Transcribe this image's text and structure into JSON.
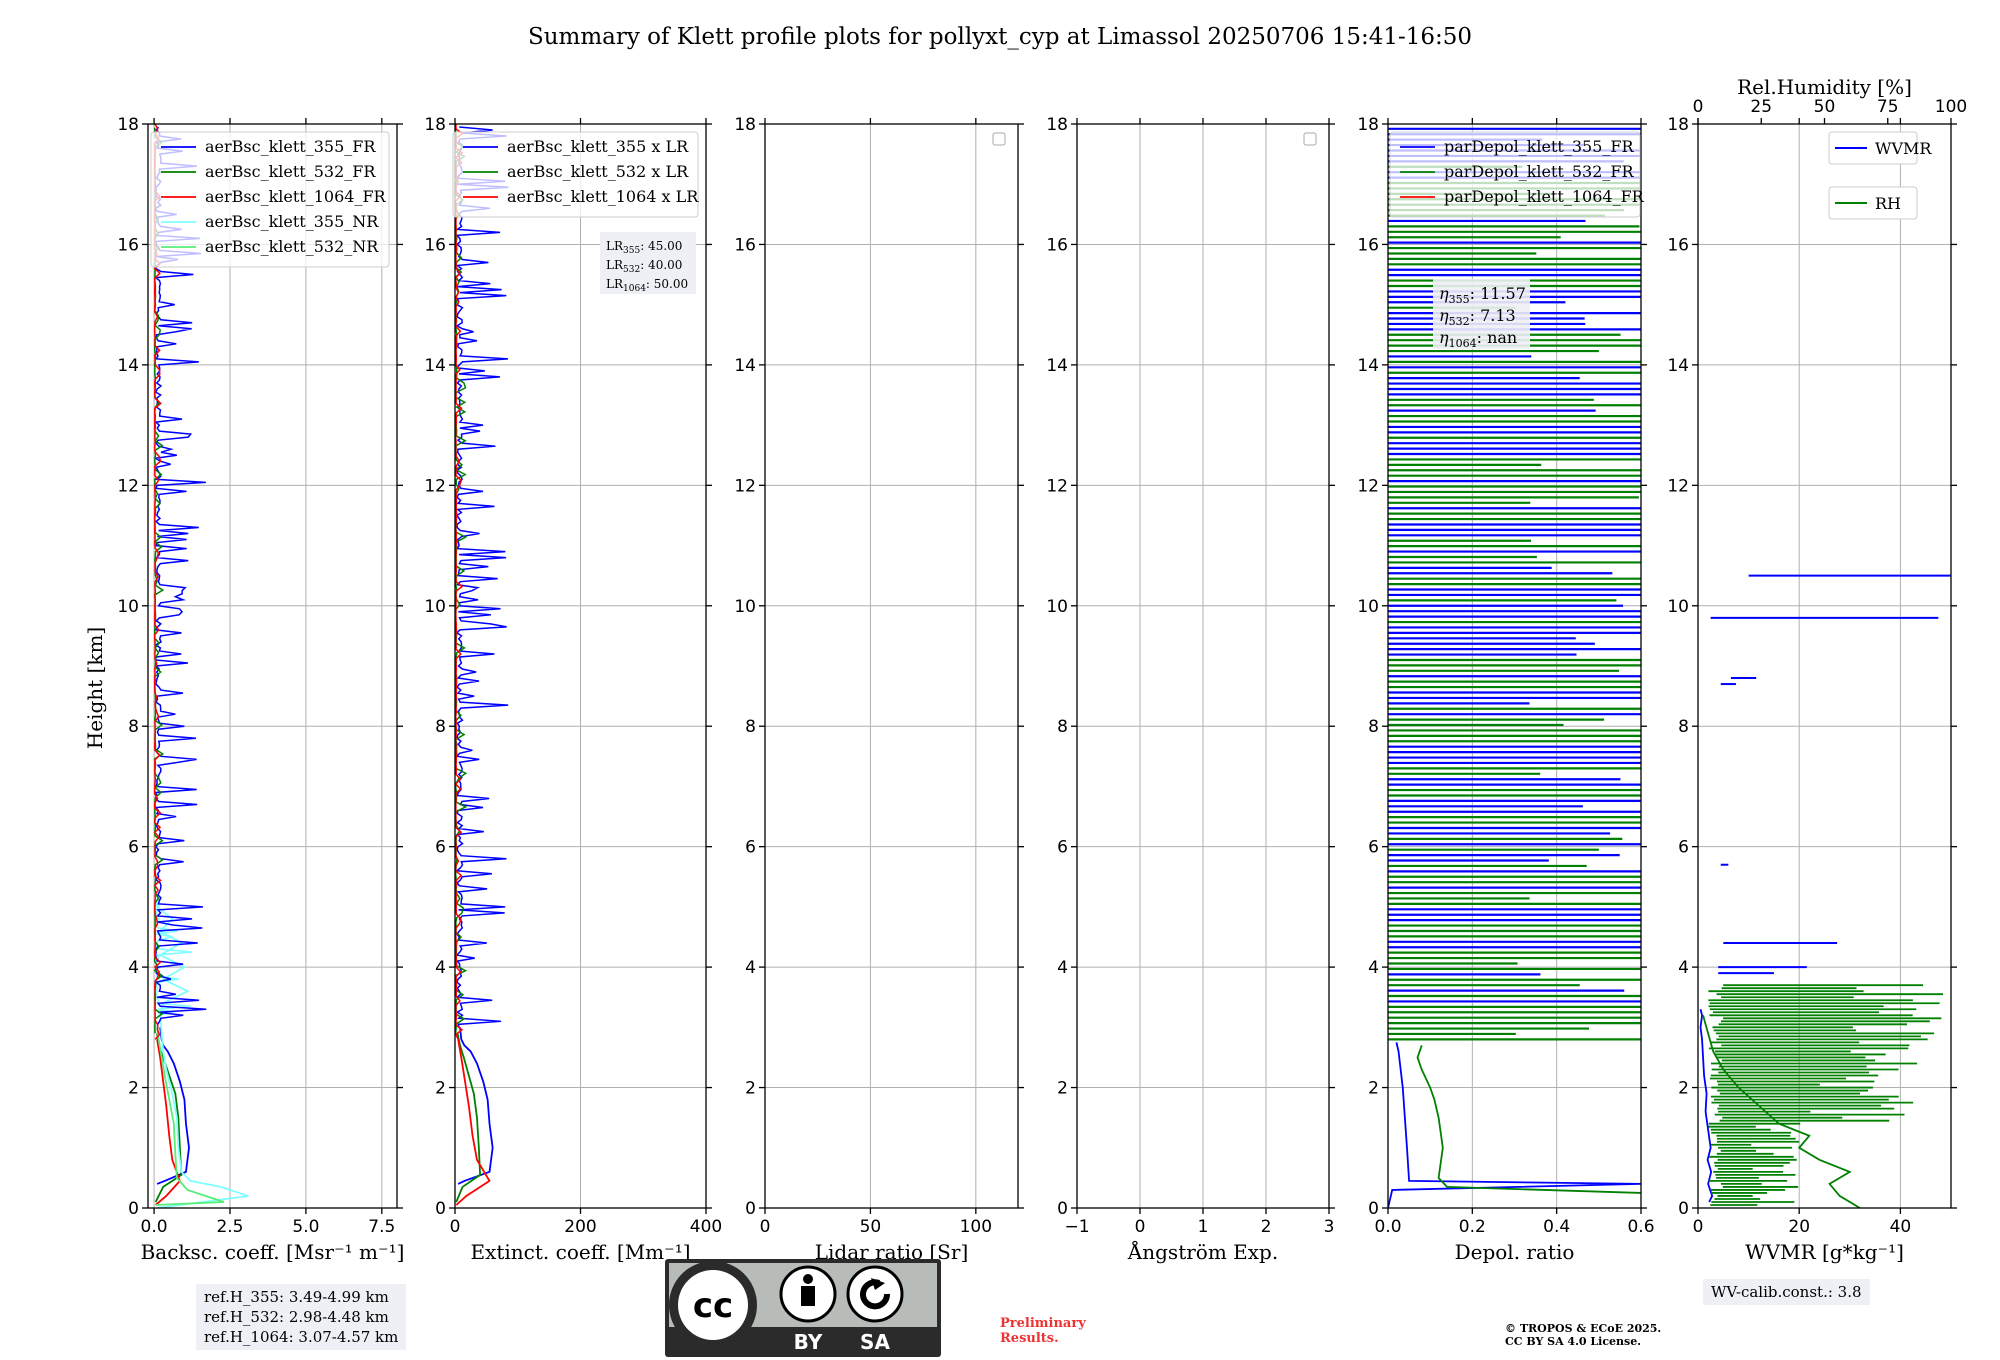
{
  "figure": {
    "title": "Summary of Klett profile plots for pollyxt_cyp at Limassol 20250706 15:41-16:50",
    "height_label": "Height [km]",
    "ref_heights": [
      "ref.H_355: 3.49-4.99 km",
      "ref.H_532: 2.98-4.48 km",
      "ref.H_1064: 3.07-4.57 km"
    ],
    "wv_calib": "WV-calib.const.: 3.8",
    "preliminary": [
      "Preliminary",
      "Results."
    ],
    "copyright": [
      "© TROPOS & ECoE 2025.",
      "CC BY SA 4.0 License."
    ],
    "cc_badge": [
      "BY",
      "SA"
    ],
    "colors": {
      "blue": "#0000ff",
      "green": "#008000",
      "red": "#ff0000",
      "cyan": "#7fffff",
      "lightgreen": "#55ee77"
    }
  },
  "chart_data": [
    {
      "type": "line",
      "xlabel": "Backsc. coeff. [Msr⁻¹ m⁻¹]",
      "xlim": [
        -0.2,
        8
      ],
      "xticks": [
        0,
        2.5,
        5,
        7.5
      ],
      "xticklabels": [
        "0.0",
        "2.5",
        "5.0",
        "7.5"
      ],
      "ylim": [
        0,
        18
      ],
      "yticks": [
        0,
        2,
        4,
        6,
        8,
        10,
        12,
        14,
        16,
        18
      ],
      "grid": true,
      "legend": "upper right",
      "series": [
        {
          "name": "aerBsc_klett_355_FR",
          "color": "#0000ff",
          "x": [
            0.1,
            0.35,
            1.05,
            1.15,
            1.05,
            1.0,
            0.85,
            0.65,
            0.45,
            0.3,
            0.25,
            0.2
          ],
          "y": [
            0.4,
            0.45,
            0.6,
            1.0,
            1.4,
            1.8,
            2.1,
            2.4,
            2.6,
            2.7,
            2.8,
            3.0
          ]
        },
        {
          "name": "aerBsc_klett_532_FR",
          "color": "#008000",
          "x": [
            0.05,
            0.3,
            0.9,
            0.85,
            0.8,
            0.7,
            0.5,
            0.3,
            0.15,
            0.1
          ],
          "y": [
            0.1,
            0.35,
            0.55,
            1.0,
            1.5,
            1.9,
            2.2,
            2.5,
            2.7,
            2.9
          ]
        },
        {
          "name": "aerBsc_klett_1064_FR",
          "color": "#ff0000",
          "x": [
            0.05,
            0.4,
            0.85,
            0.6,
            0.5,
            0.4,
            0.3,
            0.2,
            0.1
          ],
          "y": [
            0.05,
            0.2,
            0.45,
            0.8,
            1.2,
            1.7,
            2.1,
            2.5,
            2.8
          ]
        },
        {
          "name": "aerBsc_klett_355_NR",
          "color": "#7fffff",
          "x": [
            0.1,
            3.1,
            2.2,
            1.2,
            0.9,
            0.8,
            0.75,
            0.6,
            0.4,
            0.3,
            0.25,
            0.2,
            0.3,
            1.1,
            0.3,
            1.0,
            0.2,
            0.9,
            0.2,
            0.6,
            0.1,
            0.0
          ],
          "y": [
            0.0,
            0.2,
            0.35,
            0.45,
            0.6,
            1.0,
            1.5,
            1.9,
            2.3,
            2.6,
            2.9,
            3.2,
            3.4,
            3.6,
            3.8,
            4.0,
            4.2,
            4.4,
            4.6,
            4.8,
            5.0,
            5.2
          ]
        },
        {
          "name": "aerBsc_klett_532_NR",
          "color": "#55ee77",
          "x": [
            0.05,
            2.3,
            1.1,
            0.75,
            0.7,
            0.65,
            0.5,
            0.35,
            0.25,
            0.15,
            0.1
          ],
          "y": [
            0.05,
            0.1,
            0.3,
            0.5,
            0.9,
            1.4,
            1.8,
            2.2,
            2.5,
            2.8,
            3.0
          ]
        }
      ],
      "ref_box": "ref_heights"
    },
    {
      "type": "line",
      "xlabel": "Extinct. coeff. [Mm⁻¹]",
      "xlim": [
        0,
        400
      ],
      "xticks": [
        0,
        200,
        400
      ],
      "xticklabels": [
        "0",
        "200",
        "400"
      ],
      "ylim": [
        0,
        18
      ],
      "yticks": [
        0,
        2,
        4,
        6,
        8,
        10,
        12,
        14,
        16,
        18
      ],
      "grid": true,
      "legend": "upper right",
      "lidar_ratios": [
        "45.00",
        "40.00",
        "50.00"
      ],
      "series": [
        {
          "name": "aerBsc_klett_355 x LR",
          "color": "#0000ff",
          "x": [
            5,
            15,
            55,
            60,
            55,
            52,
            45,
            35,
            25,
            15,
            10,
            8
          ],
          "y": [
            0.4,
            0.45,
            0.6,
            1.0,
            1.4,
            1.8,
            2.1,
            2.4,
            2.6,
            2.7,
            2.8,
            3.0
          ]
        },
        {
          "name": "aerBsc_klett_532 x LR",
          "color": "#008000",
          "x": [
            2,
            12,
            40,
            38,
            35,
            30,
            22,
            14,
            8,
            4
          ],
          "y": [
            0.1,
            0.35,
            0.55,
            1.0,
            1.5,
            1.9,
            2.2,
            2.5,
            2.7,
            2.9
          ]
        },
        {
          "name": "aerBsc_klett_1064 x LR",
          "color": "#ff0000",
          "x": [
            2,
            18,
            55,
            35,
            28,
            22,
            16,
            10,
            5
          ],
          "y": [
            0.05,
            0.2,
            0.45,
            0.8,
            1.2,
            1.7,
            2.1,
            2.5,
            2.8
          ]
        }
      ]
    },
    {
      "type": "line",
      "xlabel": "Lidar ratio [Sr]",
      "xlim": [
        0,
        120
      ],
      "xticks": [
        0,
        50,
        100
      ],
      "xticklabels": [
        "0",
        "50",
        "100"
      ],
      "ylim": [
        0,
        18
      ],
      "yticks": [
        0,
        2,
        4,
        6,
        8,
        10,
        12,
        14,
        16,
        18
      ],
      "grid": true,
      "legend": "upper right (empty)",
      "series": []
    },
    {
      "type": "line",
      "xlabel": "Ångström Exp.",
      "xlim": [
        -1,
        3
      ],
      "xticks": [
        -1,
        0,
        1,
        2,
        3
      ],
      "xticklabels": [
        "−1",
        "0",
        "1",
        "2",
        "3"
      ],
      "ylim": [
        0,
        18
      ],
      "yticks": [
        0,
        2,
        4,
        6,
        8,
        10,
        12,
        14,
        16,
        18
      ],
      "grid": true,
      "legend": "upper right (empty)",
      "series": []
    },
    {
      "type": "line",
      "xlabel": "Depol. ratio",
      "xlim": [
        0,
        0.6
      ],
      "xticks": [
        0,
        0.2,
        0.4,
        0.6
      ],
      "xticklabels": [
        "0.0",
        "0.2",
        "0.4",
        "0.6"
      ],
      "ylim": [
        0,
        18
      ],
      "yticks": [
        0,
        2,
        4,
        6,
        8,
        10,
        12,
        14,
        16,
        18
      ],
      "grid": true,
      "legend": "upper left",
      "eta_values": [
        "11.57",
        "7.13",
        "nan"
      ],
      "series": [
        {
          "name": "parDepol_klett_355_FR",
          "color": "#0000ff",
          "x": [
            0.0,
            0.01,
            0.6,
            0.05,
            0.045,
            0.04,
            0.035,
            0.03,
            0.025,
            0.02
          ],
          "y": [
            0.0,
            0.3,
            0.4,
            0.45,
            1.0,
            1.5,
            2.0,
            2.3,
            2.6,
            2.75
          ]
        },
        {
          "name": "parDepol_klett_532_FR",
          "color": "#008000",
          "x": [
            0.6,
            0.14,
            0.12,
            0.13,
            0.12,
            0.11,
            0.1,
            0.08,
            0.07,
            0.08
          ],
          "y": [
            0.25,
            0.35,
            0.5,
            1.0,
            1.5,
            1.8,
            2.0,
            2.3,
            2.5,
            2.7
          ]
        },
        {
          "name": "parDepol_klett_1064_FR",
          "color": "#ff0000",
          "x": [],
          "y": []
        }
      ]
    },
    {
      "type": "line",
      "xlabel": "WVMR [g*kg⁻¹]",
      "xlim": [
        0,
        50
      ],
      "xticks": [
        0,
        20,
        40
      ],
      "xticklabels": [
        "0",
        "20",
        "40"
      ],
      "top_xlabel": "Rel.Humidity [%]",
      "top_xlim": [
        0,
        100
      ],
      "top_xticks": [
        0,
        25,
        50,
        75,
        100
      ],
      "ylim": [
        0,
        18
      ],
      "yticks": [
        0,
        2,
        4,
        6,
        8,
        10,
        12,
        14,
        16,
        18
      ],
      "grid": true,
      "legend": "upper right",
      "series": [
        {
          "name": "WVMR",
          "color": "#0000ff",
          "x": [
            2.2,
            2.8,
            2.0,
            2.6,
            1.9,
            2.5,
            2.0,
            1.5,
            1.7,
            1.2,
            1.0,
            0.8,
            0.5,
            0.8,
            0.5
          ],
          "y": [
            0.1,
            0.2,
            0.4,
            0.6,
            0.8,
            1.0,
            1.3,
            1.6,
            1.9,
            2.2,
            2.5,
            2.8,
            3.0,
            3.2,
            3.3
          ]
        },
        {
          "name": "RH",
          "color": "#008000",
          "x": [
            32,
            28,
            26,
            30,
            24,
            20,
            22,
            16,
            12,
            8,
            5,
            3,
            2,
            1
          ],
          "y": [
            0.0,
            0.2,
            0.4,
            0.6,
            0.8,
            1.0,
            1.2,
            1.4,
            1.7,
            2.0,
            2.3,
            2.6,
            2.9,
            3.2
          ]
        }
      ]
    }
  ]
}
